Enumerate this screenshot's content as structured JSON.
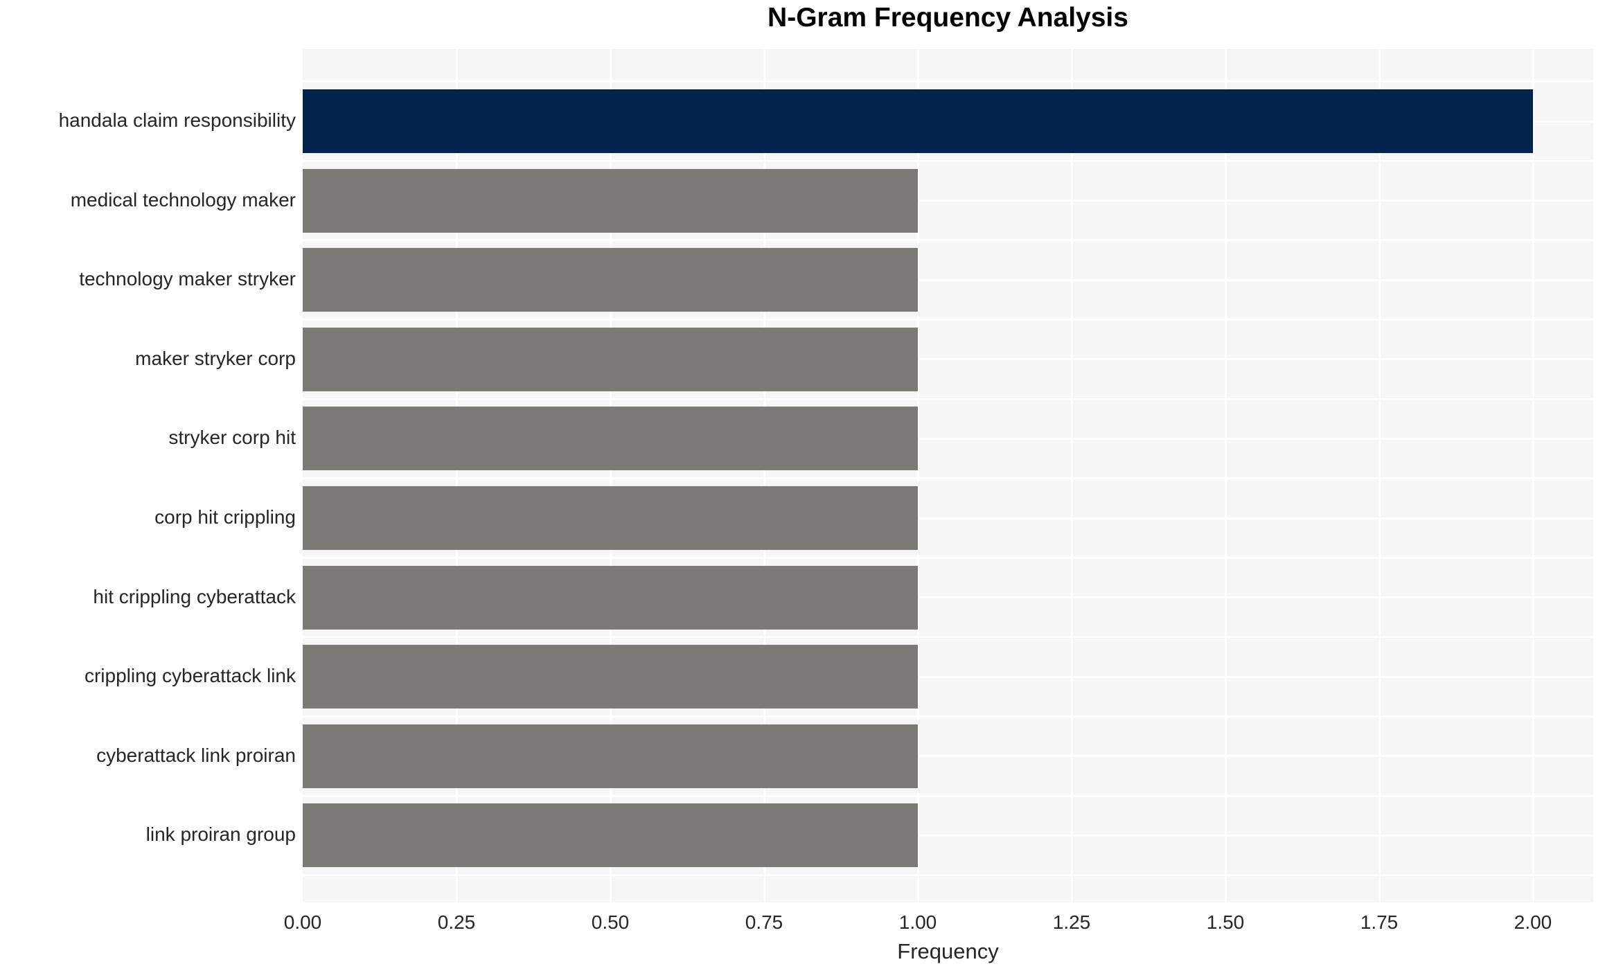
{
  "chart_data": {
    "type": "bar",
    "orientation": "horizontal",
    "title": "N-Gram Frequency Analysis",
    "xlabel": "Frequency",
    "ylabel": "",
    "categories": [
      "handala claim responsibility",
      "medical technology maker",
      "technology maker stryker",
      "maker stryker corp",
      "stryker corp hit",
      "corp hit crippling",
      "hit crippling cyberattack",
      "crippling cyberattack link",
      "cyberattack link proiran",
      "link proiran group"
    ],
    "values": [
      2,
      1,
      1,
      1,
      1,
      1,
      1,
      1,
      1,
      1
    ],
    "bar_colors": [
      "#02234c",
      "#7b7a77",
      "#7b7a77",
      "#7b7a77",
      "#7b7a77",
      "#7b7a77",
      "#7b7a77",
      "#7b7a77",
      "#7b7a77",
      "#7b7a77"
    ],
    "xlim": [
      0,
      2.1
    ],
    "xticks": [
      "0.00",
      "0.25",
      "0.50",
      "0.75",
      "1.00",
      "1.25",
      "1.50",
      "1.75",
      "2.00"
    ],
    "xtick_values": [
      0,
      0.25,
      0.5,
      0.75,
      1.0,
      1.25,
      1.5,
      1.75,
      2.0
    ],
    "grid": true,
    "legend": "none",
    "colors": {
      "highlight_bar": "#02234c",
      "default_bar": "#7b7a77",
      "plot_background": "#f6f6f7",
      "gridline": "#ffffff",
      "text": "#262626",
      "title_text": "#000000"
    }
  }
}
